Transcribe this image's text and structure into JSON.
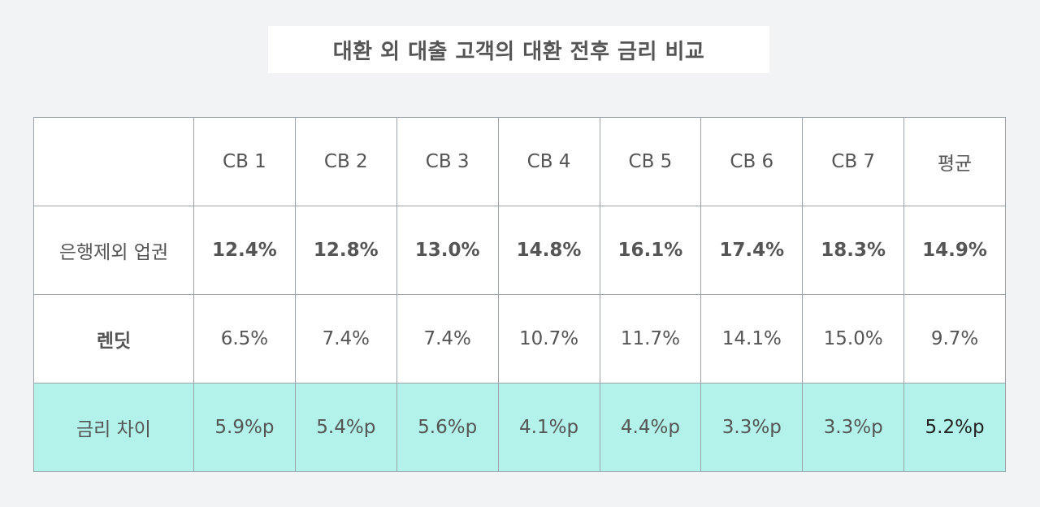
{
  "title": "대환 외 대출 고객의 대환 전후 금리 비교",
  "chart_data": {
    "type": "table",
    "title": "대환 외 대출 고객의 대환 전후 금리 비교",
    "columns": [
      "",
      "CB 1",
      "CB 2",
      "CB 3",
      "CB 4",
      "CB 5",
      "CB 6",
      "CB 7",
      "평균"
    ],
    "rows": [
      {
        "label": "은행제외 업권",
        "values": [
          "12.4%",
          "12.8%",
          "13.0%",
          "14.8%",
          "16.1%",
          "17.4%",
          "18.3%",
          "14.9%"
        ]
      },
      {
        "label": "렌딧",
        "values": [
          "6.5%",
          "7.4%",
          "7.4%",
          "10.7%",
          "11.7%",
          "14.1%",
          "15.0%",
          "9.7%"
        ]
      },
      {
        "label": "금리 차이",
        "values": [
          "5.9%p",
          "5.4%p",
          "5.6%p",
          "4.1%p",
          "4.4%p",
          "3.3%p",
          "3.3%p",
          "5.2%p"
        ]
      }
    ]
  },
  "colors": {
    "background": "#f2f3f5",
    "highlight_row": "#b3f2ea",
    "border": "#9aa3a8",
    "text": "#555555",
    "emphasis_text": "#222222"
  }
}
